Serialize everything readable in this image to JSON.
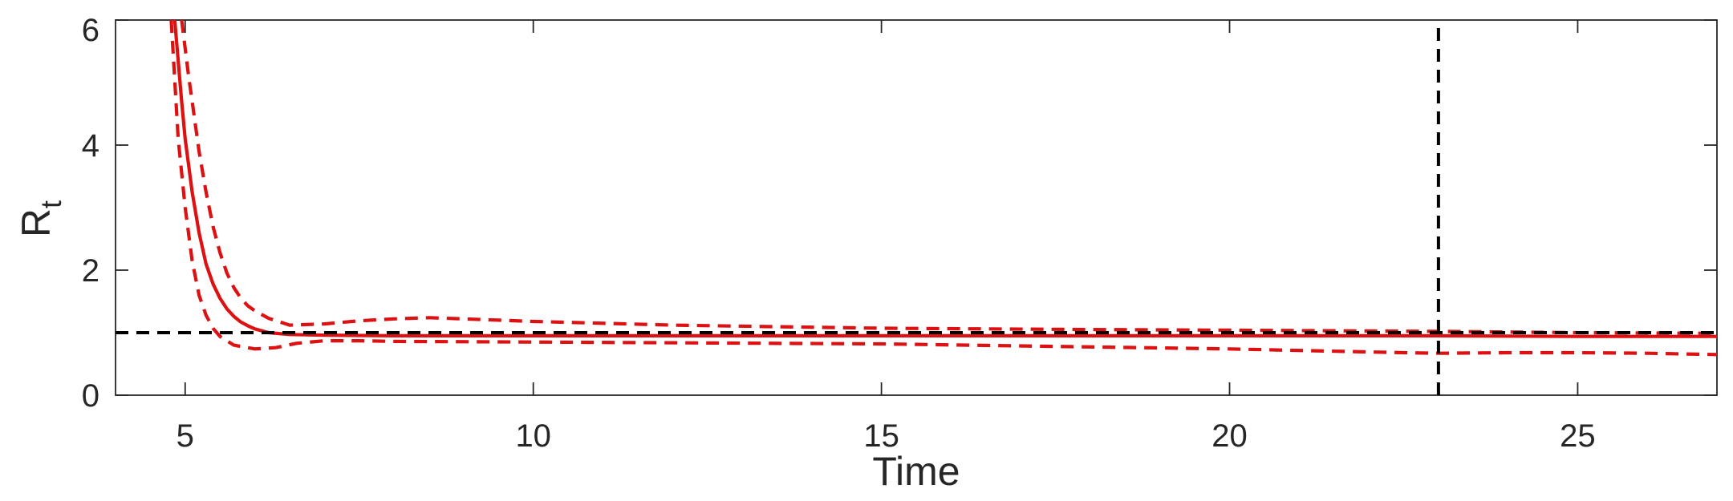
{
  "chart_data": {
    "type": "line",
    "xlabel": "Time",
    "ylabel": "R",
    "ylabel_subscript": "t",
    "xlim": [
      4,
      27
    ],
    "ylim": [
      0,
      6
    ],
    "xticks": [
      5,
      10,
      15,
      20,
      25
    ],
    "yticks": [
      0,
      2,
      4,
      6
    ],
    "grid": false,
    "colors": {
      "estimate": "#dd1111",
      "reference": "#000000"
    },
    "series": [
      {
        "style": "solid",
        "color": "#dd1111",
        "x": [
          4.85,
          4.95,
          5.0,
          5.1,
          5.2,
          5.3,
          5.4,
          5.5,
          5.6,
          5.7,
          5.8,
          5.9,
          6.0,
          6.2,
          6.5,
          7.0,
          8.0,
          10.0,
          15.0,
          20.0,
          23.0,
          25.0,
          27.0
        ],
        "y": [
          6.0,
          4.7,
          4.1,
          3.25,
          2.6,
          2.1,
          1.78,
          1.55,
          1.38,
          1.26,
          1.17,
          1.11,
          1.06,
          1.0,
          0.97,
          0.96,
          0.95,
          0.95,
          0.95,
          0.95,
          0.95,
          0.94,
          0.94
        ]
      },
      {
        "style": "dashed",
        "color": "#dd1111",
        "x": [
          4.95,
          5.05,
          5.1,
          5.2,
          5.3,
          5.4,
          5.5,
          5.6,
          5.7,
          5.8,
          5.9,
          6.0,
          6.2,
          6.5,
          7.0,
          7.5,
          8.0,
          8.5,
          9.0,
          10.0,
          12.0,
          15.0,
          18.0,
          20.0,
          23.0,
          25.0,
          27.0
        ],
        "y": [
          6.0,
          5.1,
          4.7,
          3.9,
          3.25,
          2.7,
          2.28,
          1.95,
          1.72,
          1.55,
          1.43,
          1.35,
          1.23,
          1.12,
          1.14,
          1.19,
          1.22,
          1.24,
          1.22,
          1.18,
          1.12,
          1.07,
          1.05,
          1.04,
          1.02,
          1.0,
          0.99
        ]
      },
      {
        "style": "dashed",
        "color": "#dd1111",
        "x": [
          4.8,
          4.9,
          5.0,
          5.1,
          5.2,
          5.3,
          5.4,
          5.5,
          5.7,
          6.0,
          6.3,
          6.6,
          7.0,
          7.5,
          8.0,
          10.0,
          15.0,
          20.0,
          22.5,
          23.0,
          24.0,
          25.0,
          26.0,
          27.0
        ],
        "y": [
          6.0,
          4.1,
          3.0,
          2.15,
          1.6,
          1.28,
          1.07,
          0.94,
          0.8,
          0.74,
          0.76,
          0.83,
          0.87,
          0.87,
          0.86,
          0.85,
          0.82,
          0.74,
          0.68,
          0.67,
          0.68,
          0.68,
          0.67,
          0.65
        ]
      },
      {
        "style": "dashed",
        "color": "#000000",
        "x": [
          4,
          27
        ],
        "y": [
          1,
          1
        ]
      },
      {
        "style": "dashed",
        "color": "#000000",
        "x": [
          23,
          23
        ],
        "y": [
          0,
          6
        ]
      }
    ]
  }
}
